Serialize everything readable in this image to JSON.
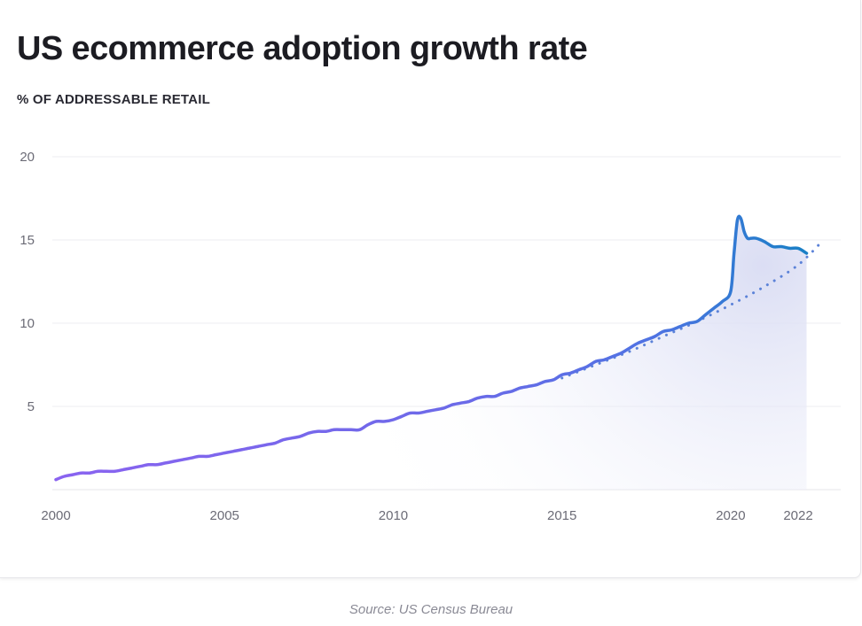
{
  "header": {
    "title": "US ecommerce adoption growth rate",
    "subtitle": "% OF ADDRESSABLE RETAIL"
  },
  "footer": {
    "source": "Source: US Census Bureau"
  },
  "colors": {
    "line_start": "#8a63f0",
    "line_mid": "#4f73e3",
    "line_end": "#1a7fc6",
    "trend": "#5b82d8",
    "grid": "#ececf0",
    "fill": "#d9dcf3"
  },
  "chart_data": {
    "type": "line",
    "title": "US ecommerce adoption growth rate",
    "ylabel": "% OF ADDRESSABLE RETAIL",
    "xlim": [
      2000,
      2022.75
    ],
    "ylim": [
      0,
      20
    ],
    "x_ticks": [
      2000,
      2005,
      2010,
      2015,
      2020,
      2022
    ],
    "y_ticks": [
      5,
      10,
      15,
      20
    ],
    "grid": true,
    "series": [
      {
        "style": "solid",
        "x": [
          2000.0,
          2000.25,
          2000.5,
          2000.75,
          2001.0,
          2001.25,
          2001.5,
          2001.75,
          2002.0,
          2002.25,
          2002.5,
          2002.75,
          2003.0,
          2003.25,
          2003.5,
          2003.75,
          2004.0,
          2004.25,
          2004.5,
          2004.75,
          2005.0,
          2005.25,
          2005.5,
          2005.75,
          2006.0,
          2006.25,
          2006.5,
          2006.75,
          2007.0,
          2007.25,
          2007.5,
          2007.75,
          2008.0,
          2008.25,
          2008.5,
          2008.75,
          2009.0,
          2009.25,
          2009.5,
          2009.75,
          2010.0,
          2010.25,
          2010.5,
          2010.75,
          2011.0,
          2011.25,
          2011.5,
          2011.75,
          2012.0,
          2012.25,
          2012.5,
          2012.75,
          2013.0,
          2013.25,
          2013.5,
          2013.75,
          2014.0,
          2014.25,
          2014.5,
          2014.75,
          2015.0,
          2015.25,
          2015.5,
          2015.75,
          2016.0,
          2016.25,
          2016.5,
          2016.75,
          2017.0,
          2017.25,
          2017.5,
          2017.75,
          2018.0,
          2018.25,
          2018.5,
          2018.75,
          2019.0,
          2019.25,
          2019.5,
          2019.75,
          2020.0,
          2020.1,
          2020.2,
          2020.3,
          2020.4,
          2020.5,
          2020.6,
          2020.75,
          2021.0,
          2021.25,
          2021.5,
          2021.75,
          2022.0,
          2022.25
        ],
        "y": [
          0.6,
          0.8,
          0.9,
          1.0,
          1.0,
          1.1,
          1.1,
          1.1,
          1.2,
          1.3,
          1.4,
          1.5,
          1.5,
          1.6,
          1.7,
          1.8,
          1.9,
          2.0,
          2.0,
          2.1,
          2.2,
          2.3,
          2.4,
          2.5,
          2.6,
          2.7,
          2.8,
          3.0,
          3.1,
          3.2,
          3.4,
          3.5,
          3.5,
          3.6,
          3.6,
          3.6,
          3.6,
          3.9,
          4.1,
          4.1,
          4.2,
          4.4,
          4.6,
          4.6,
          4.7,
          4.8,
          4.9,
          5.1,
          5.2,
          5.3,
          5.5,
          5.6,
          5.6,
          5.8,
          5.9,
          6.1,
          6.2,
          6.3,
          6.5,
          6.6,
          6.9,
          7.0,
          7.2,
          7.4,
          7.7,
          7.8,
          8.0,
          8.2,
          8.5,
          8.8,
          9.0,
          9.2,
          9.5,
          9.6,
          9.8,
          10.0,
          10.1,
          10.5,
          10.9,
          11.3,
          11.9,
          14.2,
          16.2,
          16.3,
          15.5,
          15.1,
          15.1,
          15.1,
          14.9,
          14.6,
          14.6,
          14.5,
          14.5,
          14.2
        ]
      },
      {
        "style": "dotted",
        "x": [
          2015.0,
          2016.0,
          2017.0,
          2018.0,
          2019.0,
          2020.0,
          2021.0,
          2022.0,
          2022.75
        ],
        "y": [
          6.7,
          7.5,
          8.3,
          9.2,
          10.1,
          11.1,
          12.2,
          13.5,
          15.0
        ]
      }
    ]
  }
}
